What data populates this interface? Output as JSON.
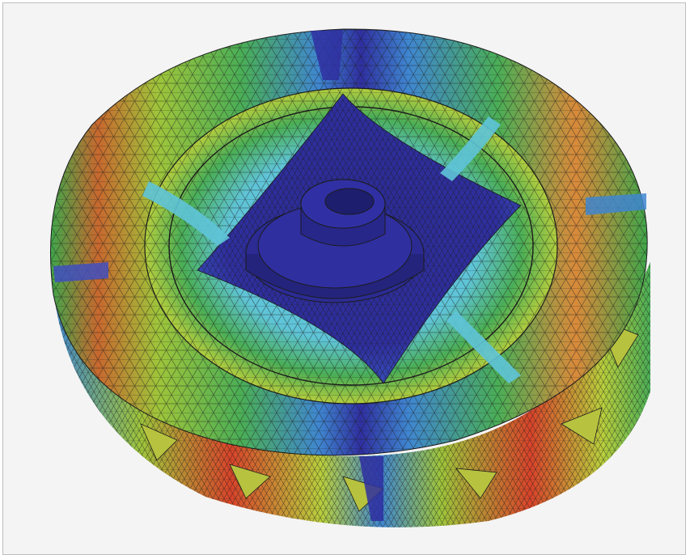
{
  "figure": {
    "subject": "fea-deformation-contour",
    "colors": {
      "background": "#f4f4f4",
      "mesh_line": "#1b1b1b",
      "low": "#2f2fa0",
      "low_mid": "#3f86d0",
      "mid_cyan": "#5fc4d8",
      "mid": "#3fa64a",
      "mid_high": "#a9c93a",
      "high": "#e4b33a",
      "max": "#d9442a"
    },
    "icons": [
      "fea-part-model",
      "contour-colormap",
      "triangular-mesh"
    ]
  }
}
